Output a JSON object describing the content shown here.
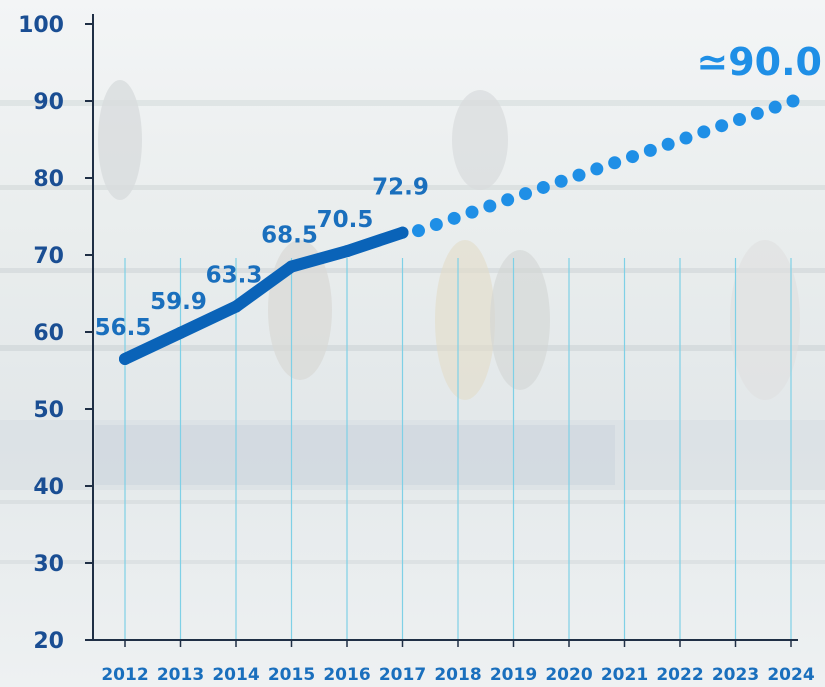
{
  "chart_data": {
    "type": "line",
    "title": "",
    "xlabel": "",
    "ylabel": "",
    "x": [
      "2012",
      "2013",
      "2014",
      "2015",
      "2016",
      "2017",
      "2018",
      "2019",
      "2020",
      "2021",
      "2022",
      "2023",
      "2024"
    ],
    "ylim": [
      20,
      100
    ],
    "yticks": [
      20,
      30,
      40,
      50,
      60,
      70,
      80,
      90,
      100
    ],
    "grid": "vertical",
    "series": [
      {
        "style": "solid",
        "points": [
          {
            "x": "2012",
            "y": 56.5,
            "label": "56.5"
          },
          {
            "x": "2013",
            "y": 59.9,
            "label": "59.9"
          },
          {
            "x": "2014",
            "y": 63.3,
            "label": "63.3"
          },
          {
            "x": "2015",
            "y": 68.5,
            "label": "68.5"
          },
          {
            "x": "2016",
            "y": 70.5,
            "label": "70.5"
          },
          {
            "x": "2017",
            "y": 72.9,
            "label": "72.9"
          }
        ]
      },
      {
        "style": "dotted",
        "points": [
          {
            "x": "2017",
            "y": 72.9
          },
          {
            "x": "2024",
            "y": 90.0
          }
        ]
      }
    ],
    "projection_label": "≃90.0",
    "colors": {
      "actual_line": "#0a63b8",
      "projection_dots": "#1f8fe6",
      "y_tick_text": "#1a4e93",
      "x_tick_text": "#1a6fbd",
      "gridline": "#7fd0e6",
      "axis": "#1f2f45"
    }
  }
}
